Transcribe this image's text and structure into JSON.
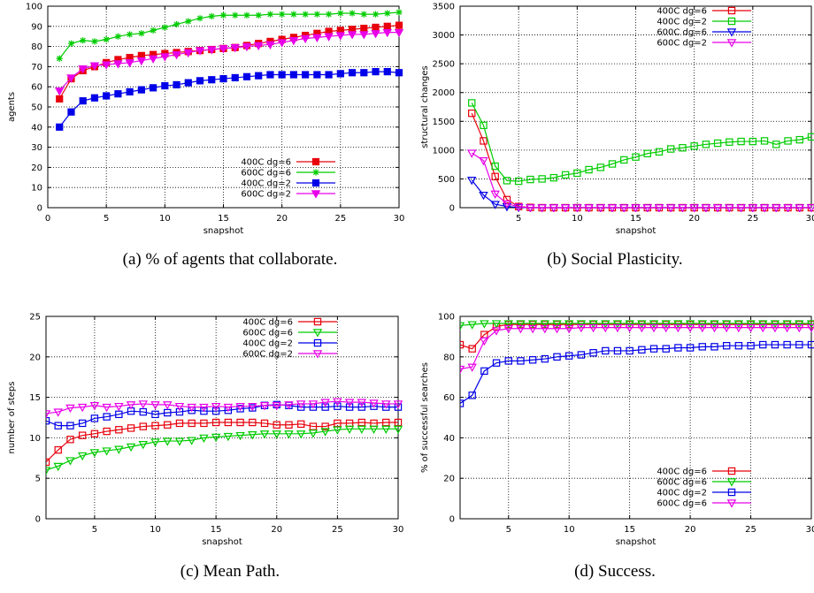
{
  "captions": {
    "a": "(a) % of agents that collaborate.",
    "b": "(b) Social Plasticity.",
    "c": "(c) Mean Path.",
    "d": "(d) Success."
  },
  "chart_data": [
    {
      "id": "a",
      "type": "line",
      "title": "",
      "xlabel": "snapshot",
      "ylabel": "agents",
      "xlim": [
        0,
        30
      ],
      "ylim": [
        0,
        100
      ],
      "xticks": [
        0,
        5,
        10,
        15,
        20,
        25,
        30
      ],
      "yticks": [
        0,
        10,
        20,
        30,
        40,
        50,
        60,
        70,
        80,
        90,
        100
      ],
      "grid": true,
      "legend_position": "bottom-right",
      "x": [
        1,
        2,
        3,
        4,
        5,
        6,
        7,
        8,
        9,
        10,
        11,
        12,
        13,
        14,
        15,
        16,
        17,
        18,
        19,
        20,
        21,
        22,
        23,
        24,
        25,
        26,
        27,
        28,
        29,
        30
      ],
      "series": [
        {
          "name": "400C dg=6",
          "color": "#e8000b",
          "marker": "square",
          "values": [
            54,
            64,
            68,
            70,
            72,
            73.5,
            74.5,
            75.5,
            76,
            76.5,
            77,
            77.5,
            78,
            78.5,
            79,
            79.5,
            80.5,
            81.5,
            82.5,
            83.5,
            84.5,
            85.5,
            86.5,
            87.5,
            88,
            88.5,
            89,
            89.5,
            90,
            90.5
          ]
        },
        {
          "name": "600C dg=6",
          "color": "#00cc00",
          "marker": "star",
          "values": [
            74,
            81.5,
            83,
            82.5,
            83.5,
            85,
            86,
            86.5,
            88,
            89.5,
            91,
            92.5,
            94,
            95,
            95.5,
            95.5,
            95.5,
            95.5,
            96,
            96,
            96,
            96,
            96,
            96,
            96.5,
            96.5,
            96,
            96,
            96.5,
            97
          ]
        },
        {
          "name": "400C dg=2",
          "color": "#0000e8",
          "marker": "square",
          "values": [
            40,
            47.5,
            53,
            54.5,
            55.5,
            56.5,
            57.5,
            58.5,
            59.5,
            60.5,
            61,
            62,
            63,
            63.5,
            64,
            64.5,
            65,
            65.5,
            66,
            66,
            66,
            66,
            66,
            66,
            66.5,
            67,
            67,
            67.5,
            67.5,
            67
          ]
        },
        {
          "name": "600C dg=2",
          "color": "#e800e8",
          "marker": "triangle-down",
          "values": [
            58,
            64.5,
            69,
            70.5,
            71,
            71.5,
            72,
            73,
            74,
            75,
            76,
            77,
            78,
            78.5,
            79,
            79.5,
            80,
            80.5,
            81,
            82,
            83,
            84,
            84.5,
            85,
            85.5,
            86,
            86,
            86.5,
            87,
            87
          ]
        }
      ]
    },
    {
      "id": "b",
      "type": "line",
      "title": "",
      "xlabel": "snapshot",
      "ylabel": "structural changes",
      "xlim": [
        0,
        30
      ],
      "ylim": [
        0,
        3500
      ],
      "xticks": [
        5,
        10,
        15,
        20,
        25,
        30
      ],
      "yticks": [
        0,
        500,
        1000,
        1500,
        2000,
        2500,
        3000,
        3500
      ],
      "grid": true,
      "legend_position": "top-right",
      "x": [
        1,
        2,
        3,
        4,
        5,
        6,
        7,
        8,
        9,
        10,
        11,
        12,
        13,
        14,
        15,
        16,
        17,
        18,
        19,
        20,
        21,
        22,
        23,
        24,
        25,
        26,
        27,
        28,
        29,
        30
      ],
      "series": [
        {
          "name": "400C dg=6",
          "color": "#e8000b",
          "marker": "open-square",
          "values": [
            1640,
            1160,
            540,
            140,
            20,
            5,
            0,
            0,
            0,
            0,
            0,
            0,
            0,
            0,
            0,
            0,
            0,
            0,
            0,
            0,
            0,
            0,
            0,
            0,
            0,
            0,
            0,
            0,
            0,
            0
          ]
        },
        {
          "name": "400C dg=2",
          "color": "#00cc00",
          "marker": "open-square",
          "values": [
            1820,
            1430,
            720,
            470,
            460,
            490,
            500,
            520,
            570,
            600,
            660,
            700,
            760,
            830,
            880,
            940,
            970,
            1020,
            1040,
            1070,
            1100,
            1120,
            1140,
            1150,
            1150,
            1160,
            1100,
            1160,
            1180,
            1230
          ]
        },
        {
          "name": "600C dg=6",
          "color": "#0000e8",
          "marker": "open-triangle-down",
          "values": [
            480,
            220,
            60,
            20,
            5,
            0,
            0,
            0,
            0,
            0,
            0,
            0,
            0,
            0,
            0,
            0,
            0,
            0,
            0,
            0,
            0,
            0,
            0,
            0,
            0,
            0,
            0,
            0,
            0,
            0
          ]
        },
        {
          "name": "600C dg=2",
          "color": "#e800e8",
          "marker": "open-triangle-down",
          "values": [
            950,
            820,
            240,
            70,
            15,
            0,
            0,
            0,
            0,
            0,
            0,
            0,
            0,
            0,
            0,
            0,
            0,
            0,
            0,
            0,
            0,
            0,
            0,
            0,
            0,
            0,
            0,
            0,
            0,
            0
          ]
        }
      ]
    },
    {
      "id": "c",
      "type": "line",
      "title": "",
      "xlabel": "snapshot",
      "ylabel": "number of steps",
      "xlim": [
        1,
        30
      ],
      "ylim": [
        0,
        25
      ],
      "xticks": [
        5,
        10,
        15,
        20,
        25,
        30
      ],
      "yticks": [
        0,
        5,
        10,
        15,
        20,
        25
      ],
      "grid": true,
      "legend_position": "top-right",
      "x": [
        1,
        2,
        3,
        4,
        5,
        6,
        7,
        8,
        9,
        10,
        11,
        12,
        13,
        14,
        15,
        16,
        17,
        18,
        19,
        20,
        21,
        22,
        23,
        24,
        25,
        26,
        27,
        28,
        29,
        30
      ],
      "series": [
        {
          "name": "400C dg=6",
          "color": "#e8000b",
          "marker": "open-square",
          "values": [
            7,
            8.5,
            9.8,
            10.3,
            10.5,
            10.8,
            11,
            11.2,
            11.4,
            11.5,
            11.6,
            11.8,
            11.8,
            11.8,
            11.9,
            11.9,
            11.9,
            11.9,
            11.8,
            11.6,
            11.6,
            11.7,
            11.4,
            11.4,
            11.8,
            11.8,
            11.9,
            11.8,
            11.9,
            11.9
          ]
        },
        {
          "name": "600C dg=6",
          "color": "#00cc00",
          "marker": "open-triangle-down",
          "values": [
            6,
            6.5,
            7.2,
            7.8,
            8.2,
            8.4,
            8.6,
            8.9,
            9.2,
            9.5,
            9.6,
            9.6,
            9.7,
            10,
            10.1,
            10.2,
            10.3,
            10.4,
            10.5,
            10.5,
            10.5,
            10.5,
            10.6,
            10.8,
            11,
            11.1,
            11.1,
            11.1,
            11.1,
            11.1
          ]
        },
        {
          "name": "400C dg=2",
          "color": "#0000e8",
          "marker": "open-square",
          "values": [
            12.1,
            11.5,
            11.5,
            11.8,
            12.4,
            12.6,
            12.9,
            13.3,
            13.2,
            12.9,
            13.1,
            13.2,
            13.4,
            13.3,
            13.3,
            13.4,
            13.6,
            13.7,
            14,
            14.1,
            14,
            13.8,
            13.8,
            13.8,
            13.9,
            13.8,
            13.8,
            13.9,
            13.8,
            13.8
          ]
        },
        {
          "name": "600C dg=2",
          "color": "#e800e8",
          "marker": "open-triangle-down",
          "values": [
            13,
            13.2,
            13.7,
            13.8,
            14,
            13.8,
            13.9,
            14.1,
            14.2,
            14.1,
            14.1,
            13.9,
            13.8,
            13.8,
            13.9,
            13.8,
            13.9,
            13.9,
            14,
            14,
            14.1,
            14.2,
            14.2,
            14.4,
            14.5,
            14.4,
            14.4,
            14.3,
            14.2,
            14.2
          ]
        }
      ]
    },
    {
      "id": "d",
      "type": "line",
      "title": "",
      "xlabel": "snapshot",
      "ylabel": "% of successful searches",
      "xlim": [
        1,
        30
      ],
      "ylim": [
        0,
        100
      ],
      "xticks": [
        5,
        10,
        15,
        20,
        25,
        30
      ],
      "yticks": [
        0,
        20,
        40,
        60,
        80,
        100
      ],
      "grid": true,
      "legend_position": "bottom-right",
      "x": [
        1,
        2,
        3,
        4,
        5,
        6,
        7,
        8,
        9,
        10,
        11,
        12,
        13,
        14,
        15,
        16,
        17,
        18,
        19,
        20,
        21,
        22,
        23,
        24,
        25,
        26,
        27,
        28,
        29,
        30
      ],
      "series": [
        {
          "name": "400C dg=6",
          "color": "#e8000b",
          "marker": "open-square",
          "values": [
            86,
            84,
            91,
            95,
            96,
            96,
            96,
            96,
            96,
            96,
            96,
            96,
            96,
            96,
            96,
            96,
            96,
            96,
            96,
            96,
            96,
            96,
            96,
            96,
            96,
            96,
            96,
            96,
            96,
            96
          ]
        },
        {
          "name": "600C dg=6",
          "color": "#00cc00",
          "marker": "open-triangle-down",
          "values": [
            95.5,
            96,
            96.5,
            96.5,
            96.5,
            96.5,
            96.5,
            96.5,
            96.5,
            96.5,
            96.5,
            96.5,
            96.5,
            96.5,
            96.5,
            96.5,
            96.5,
            96.5,
            96.5,
            96.5,
            96.5,
            96.5,
            96.5,
            96.5,
            96.5,
            96.5,
            96.5,
            96.5,
            96.5,
            96.5
          ]
        },
        {
          "name": "400C dg=2",
          "color": "#0000e8",
          "marker": "open-square",
          "values": [
            57,
            61,
            73,
            77,
            78,
            78,
            78.5,
            79,
            80,
            80.5,
            81,
            82,
            83,
            83,
            83,
            83.5,
            84,
            84,
            84.5,
            84.5,
            85,
            85,
            85.5,
            85.5,
            85.5,
            86,
            86,
            86,
            86,
            86
          ]
        },
        {
          "name": "600C dg=6",
          "color": "#e800e8",
          "marker": "open-triangle-down",
          "values": [
            74,
            75,
            88,
            93,
            94,
            94,
            94,
            94,
            94,
            94,
            94.5,
            94.5,
            94.5,
            94.5,
            94.5,
            94.5,
            94.5,
            94.5,
            94.5,
            94.5,
            94.5,
            94.5,
            94.5,
            94.5,
            94.5,
            94.5,
            94.5,
            94.5,
            94.5,
            94.5
          ]
        }
      ]
    }
  ]
}
